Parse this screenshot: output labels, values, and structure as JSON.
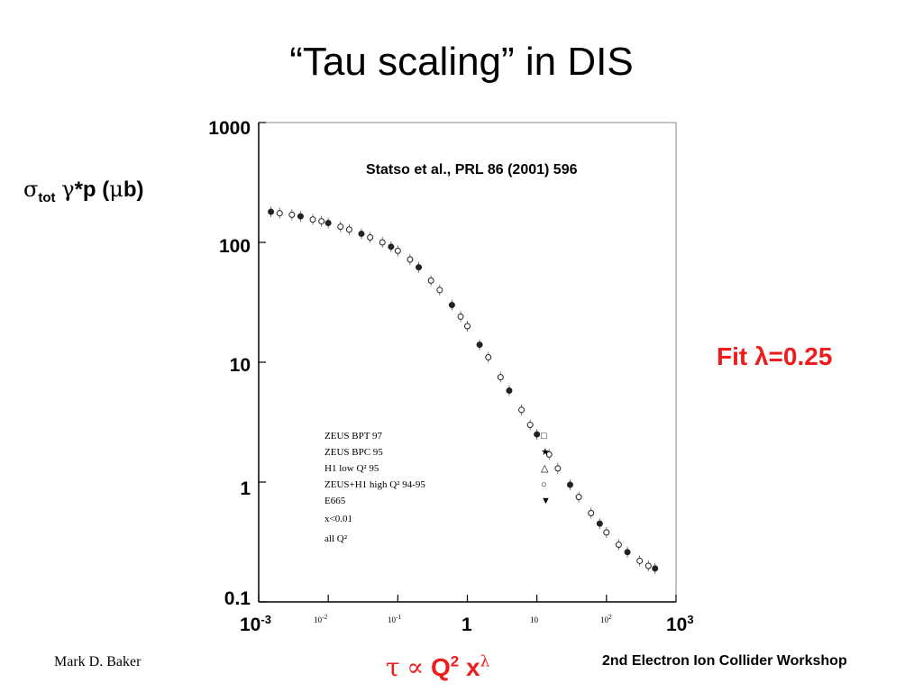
{
  "slide": {
    "title": "“Tau scaling” in DIS",
    "author": "Mark D. Baker",
    "footer_right": "2nd Electron Ion Collider Workshop",
    "citation": "Statso et al., PRL 86 (2001) 596",
    "fit_label": "Fit λ=0.25",
    "formula": {
      "tau": "τ",
      "prop": "∝",
      "q": "Q",
      "q_exp": "2",
      "x": "x",
      "x_exp": "λ"
    },
    "ylabel": {
      "sigma": "σ",
      "sub": "tot",
      "gamma": "γ",
      "rest": "*p (",
      "mu": "μ",
      "unit": "b)"
    },
    "colors": {
      "accent": "#ee1c1c",
      "text": "#000000"
    }
  },
  "chart_data": {
    "type": "scatter",
    "log_x": true,
    "log_y": true,
    "xlim": [
      0.001,
      1000
    ],
    "ylim": [
      0.1,
      1000
    ],
    "y_ticks": [
      "1000",
      "100",
      "10",
      "1",
      "0.1"
    ],
    "x_ticks_major": [
      {
        "base": "10",
        "exp": "-3"
      },
      {
        "base": "1",
        "exp": ""
      },
      {
        "base": "10",
        "exp": "3"
      }
    ],
    "x_ticks_minor": [
      {
        "base": "10",
        "exp": "-2"
      },
      {
        "base": "10",
        "exp": "-1"
      },
      {
        "base": "10",
        "exp": ""
      },
      {
        "base": "10",
        "exp": "2"
      }
    ],
    "legend": [
      {
        "name": "ZEUS BPT 97",
        "marker": "□"
      },
      {
        "name": "ZEUS BPC 95",
        "marker": "★"
      },
      {
        "name": "H1 low Q² 95",
        "marker": "△"
      },
      {
        "name": "ZEUS+H1 high Q² 94-95",
        "marker": "○"
      },
      {
        "name": "E665",
        "marker": "▼"
      }
    ],
    "legend_notes": [
      "x<0.01",
      "all Q²"
    ],
    "series": [
      {
        "name": "data",
        "points": [
          [
            0.0015,
            180
          ],
          [
            0.002,
            175
          ],
          [
            0.003,
            170
          ],
          [
            0.004,
            165
          ],
          [
            0.006,
            155
          ],
          [
            0.008,
            150
          ],
          [
            0.01,
            145
          ],
          [
            0.015,
            135
          ],
          [
            0.02,
            128
          ],
          [
            0.03,
            118
          ],
          [
            0.04,
            110
          ],
          [
            0.06,
            100
          ],
          [
            0.08,
            92
          ],
          [
            0.1,
            85
          ],
          [
            0.15,
            72
          ],
          [
            0.2,
            62
          ],
          [
            0.3,
            48
          ],
          [
            0.4,
            40
          ],
          [
            0.6,
            30
          ],
          [
            0.8,
            24
          ],
          [
            1,
            20
          ],
          [
            1.5,
            14
          ],
          [
            2,
            11
          ],
          [
            3,
            7.5
          ],
          [
            4,
            5.8
          ],
          [
            6,
            4.0
          ],
          [
            8,
            3.0
          ],
          [
            10,
            2.5
          ],
          [
            15,
            1.7
          ],
          [
            20,
            1.3
          ],
          [
            30,
            0.95
          ],
          [
            40,
            0.75
          ],
          [
            60,
            0.55
          ],
          [
            80,
            0.45
          ],
          [
            100,
            0.38
          ],
          [
            150,
            0.3
          ],
          [
            200,
            0.26
          ],
          [
            300,
            0.22
          ],
          [
            400,
            0.2
          ],
          [
            500,
            0.19
          ]
        ]
      }
    ]
  }
}
